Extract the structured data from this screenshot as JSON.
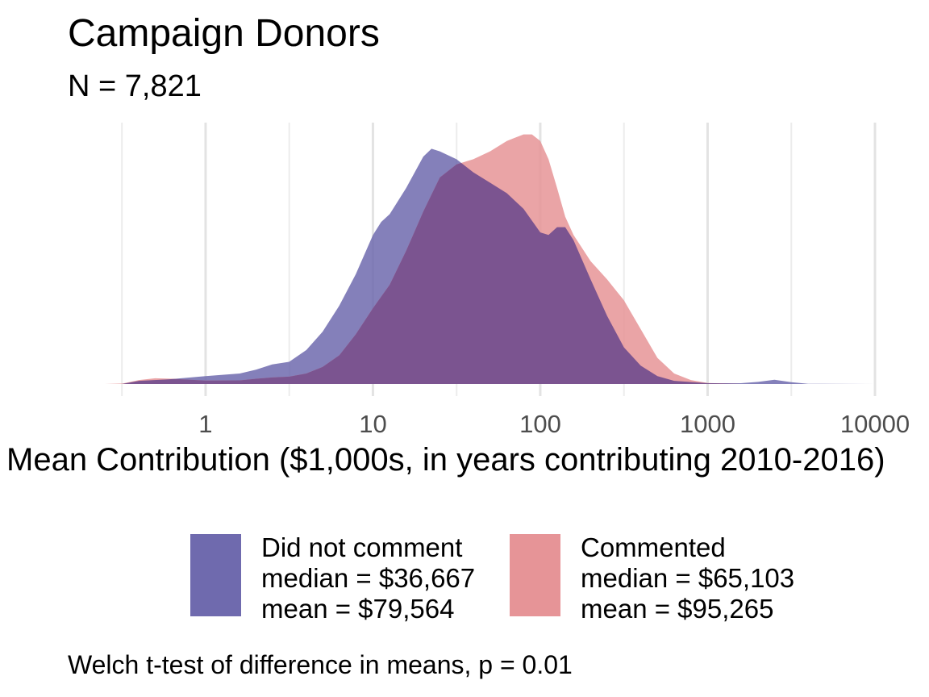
{
  "chart_data": {
    "type": "area",
    "title": "Campaign Donors",
    "subtitle": "N = 7,821",
    "xlabel": "Mean Contribution ($1,000s, in years contributing 2010-2016)",
    "ylabel": "",
    "x_scale": "log10",
    "xlim": [
      0.25,
      10000
    ],
    "ylim": [
      0,
      1.0
    ],
    "grid": true,
    "legend_position": "bottom",
    "x_ticks": [
      {
        "value": 1,
        "label": "1"
      },
      {
        "value": 10,
        "label": "10"
      },
      {
        "value": 100,
        "label": "100"
      },
      {
        "value": 1000,
        "label": "1000"
      },
      {
        "value": 10000,
        "label": "10000"
      }
    ],
    "series": [
      {
        "name": "Did not comment",
        "median": "median = $36,667",
        "mean": "mean = $79,564",
        "color": "#6f6aae",
        "points": [
          [
            0.25,
            0.0
          ],
          [
            0.316,
            0.0
          ],
          [
            0.4,
            0.012
          ],
          [
            0.6,
            0.018
          ],
          [
            1.0,
            0.03
          ],
          [
            1.6,
            0.04
          ],
          [
            2.0,
            0.055
          ],
          [
            2.5,
            0.075
          ],
          [
            3.16,
            0.085
          ],
          [
            4.0,
            0.13
          ],
          [
            5.0,
            0.2
          ],
          [
            6.3,
            0.3
          ],
          [
            7.9,
            0.42
          ],
          [
            10.0,
            0.57
          ],
          [
            11.2,
            0.62
          ],
          [
            12.6,
            0.65
          ],
          [
            15.8,
            0.75
          ],
          [
            20.0,
            0.87
          ],
          [
            22.4,
            0.9
          ],
          [
            25.1,
            0.89
          ],
          [
            31.6,
            0.86
          ],
          [
            39.8,
            0.81
          ],
          [
            50.1,
            0.77
          ],
          [
            63.1,
            0.73
          ],
          [
            79.4,
            0.67
          ],
          [
            100.0,
            0.58
          ],
          [
            112.0,
            0.57
          ],
          [
            126.0,
            0.6
          ],
          [
            141.0,
            0.6
          ],
          [
            158.0,
            0.55
          ],
          [
            200.0,
            0.4
          ],
          [
            251.0,
            0.26
          ],
          [
            316.0,
            0.14
          ],
          [
            398.0,
            0.07
          ],
          [
            501.0,
            0.03
          ],
          [
            631.0,
            0.012
          ],
          [
            1000.0,
            0.003
          ],
          [
            1580.0,
            0.003
          ],
          [
            2000.0,
            0.008
          ],
          [
            2510.0,
            0.016
          ],
          [
            3160.0,
            0.007
          ],
          [
            3980.0,
            0.001
          ],
          [
            10000.0,
            0.0
          ]
        ]
      },
      {
        "name": "Commented",
        "median": "median = $65,103",
        "mean": "mean = $95,265",
        "color": "#e69497",
        "points": [
          [
            0.25,
            0.0
          ],
          [
            0.32,
            0.002
          ],
          [
            0.4,
            0.015
          ],
          [
            0.5,
            0.022
          ],
          [
            0.63,
            0.02
          ],
          [
            1.0,
            0.013
          ],
          [
            1.6,
            0.014
          ],
          [
            2.0,
            0.02
          ],
          [
            2.5,
            0.025
          ],
          [
            3.16,
            0.028
          ],
          [
            4.0,
            0.04
          ],
          [
            5.0,
            0.065
          ],
          [
            6.3,
            0.11
          ],
          [
            7.9,
            0.19
          ],
          [
            10.0,
            0.29
          ],
          [
            12.6,
            0.38
          ],
          [
            15.8,
            0.51
          ],
          [
            20.0,
            0.66
          ],
          [
            25.1,
            0.79
          ],
          [
            31.6,
            0.84
          ],
          [
            39.8,
            0.86
          ],
          [
            50.1,
            0.89
          ],
          [
            63.1,
            0.93
          ],
          [
            79.4,
            0.955
          ],
          [
            89.1,
            0.955
          ],
          [
            100.0,
            0.93
          ],
          [
            112.0,
            0.86
          ],
          [
            126.0,
            0.75
          ],
          [
            141.0,
            0.64
          ],
          [
            158.0,
            0.57
          ],
          [
            200.0,
            0.47
          ],
          [
            251.0,
            0.4
          ],
          [
            316.0,
            0.32
          ],
          [
            398.0,
            0.21
          ],
          [
            501.0,
            0.1
          ],
          [
            631.0,
            0.04
          ],
          [
            794.0,
            0.015
          ],
          [
            1000.0,
            0.004
          ],
          [
            1580.0,
            0.0
          ],
          [
            10000.0,
            0.0
          ]
        ]
      }
    ],
    "overlap_color": "#7b5490",
    "annotation": "Welch t-test of difference in means, p = 0.01"
  }
}
